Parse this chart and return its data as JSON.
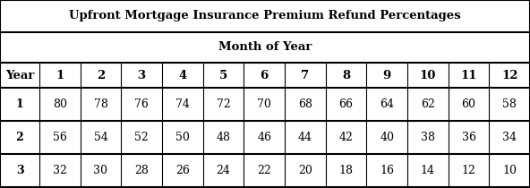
{
  "title": "Upfront Mortgage Insurance Premium Refund Percentages",
  "subtitle": "Month of Year",
  "col_headers": [
    "Year",
    "1",
    "2",
    "3",
    "4",
    "5",
    "6",
    "7",
    "8",
    "9",
    "10",
    "11",
    "12"
  ],
  "rows": [
    [
      "1",
      "80",
      "78",
      "76",
      "74",
      "72",
      "70",
      "68",
      "66",
      "64",
      "62",
      "60",
      "58"
    ],
    [
      "2",
      "56",
      "54",
      "52",
      "50",
      "48",
      "46",
      "44",
      "42",
      "40",
      "38",
      "36",
      "34"
    ],
    [
      "3",
      "32",
      "30",
      "28",
      "26",
      "24",
      "22",
      "20",
      "18",
      "16",
      "14",
      "12",
      "10"
    ]
  ],
  "bg_color": "#ffffff",
  "border_color": "#000000",
  "text_color": "#000000",
  "title_fontsize": 9.5,
  "header_fontsize": 9.5,
  "cell_fontsize": 9.0,
  "fig_width": 5.92,
  "fig_height": 2.1,
  "dpi": 100
}
